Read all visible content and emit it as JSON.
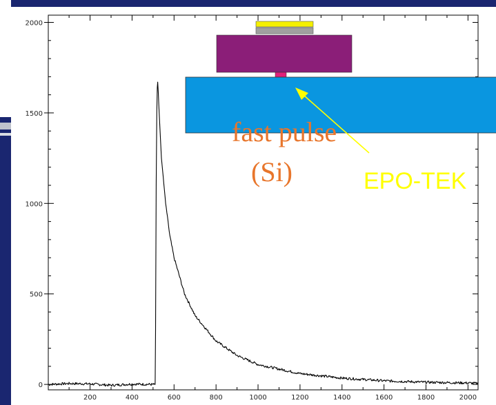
{
  "colors": {
    "slide_background": "#1a2670",
    "plot_background": "#ffffff",
    "trace": "#000000",
    "label_orange": "#e8762c",
    "label_yellow": "#ffff00",
    "detector_blue": "#0a96e0",
    "detector_purple": "#8b1e78",
    "contact_magenta": "#e0207a",
    "layer_yellow": "#f5f000",
    "layer_gray": "#a0a0a0"
  },
  "annotations": {
    "fast_pulse": "fast pulse",
    "si": "(Si)",
    "epo_tek": "EPO-TEK"
  },
  "chart_data": {
    "type": "line",
    "title": "",
    "xlabel": "",
    "ylabel": "",
    "xlim": [
      1,
      2048
    ],
    "ylim": [
      -30,
      2040
    ],
    "x_ticks": [
      200,
      400,
      600,
      800,
      1000,
      1200,
      1400,
      1600,
      1800,
      2000
    ],
    "y_ticks": [
      0,
      500,
      1000,
      1500,
      2000
    ],
    "grid": false,
    "series": [
      {
        "name": "",
        "x": [
          1,
          100,
          200,
          300,
          400,
          500,
          510,
          512,
          515,
          518,
          520,
          522,
          525,
          530,
          540,
          560,
          580,
          600,
          650,
          700,
          800,
          900,
          1000,
          1200,
          1400,
          1600,
          1800,
          2000,
          2048
        ],
        "y": [
          0,
          5,
          3,
          -5,
          2,
          0,
          0,
          300,
          1100,
          1500,
          1640,
          1670,
          1610,
          1480,
          1250,
          1000,
          820,
          700,
          500,
          380,
          240,
          160,
          110,
          60,
          35,
          20,
          12,
          8,
          5
        ]
      }
    ]
  }
}
